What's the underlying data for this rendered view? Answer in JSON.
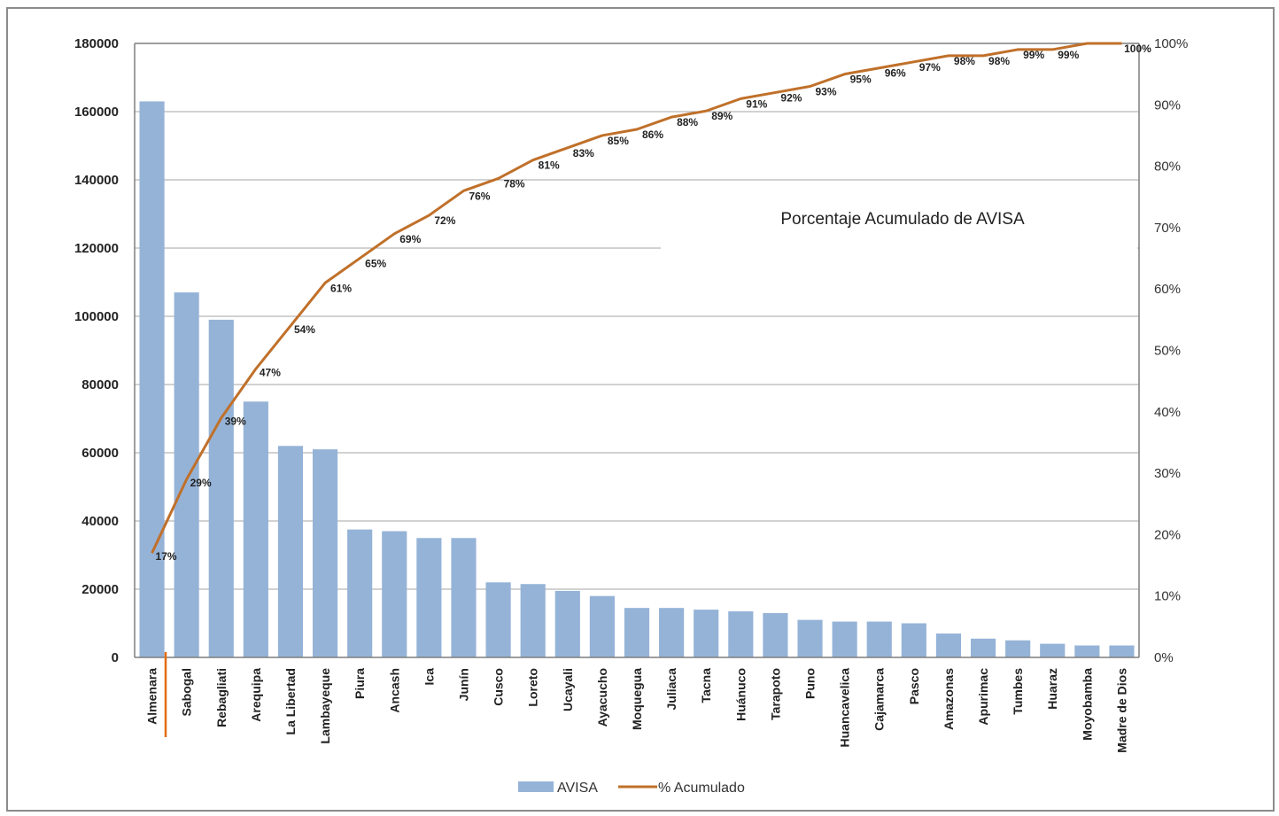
{
  "chart_data": {
    "type": "bar",
    "categories": [
      "Almenara",
      "Sabogal",
      "Rebagliati",
      "Arequipa",
      "La Libertad",
      "Lambayeque",
      "Piura",
      "Ancash",
      "Ica",
      "Junín",
      "Cusco",
      "Loreto",
      "Ucayali",
      "Ayacucho",
      "Moquegua",
      "Juliaca",
      "Tacna",
      "Huánuco",
      "Tarapoto",
      "Puno",
      "Huancavelica",
      "Cajamarca",
      "Pasco",
      "Amazonas",
      "Apurimac",
      "Tumbes",
      "Huaraz",
      "Moyobamba",
      "Madre de Dios"
    ],
    "series": [
      {
        "name": "AVISA",
        "type": "bar",
        "axis": "left",
        "color": "#95b3d7",
        "values": [
          163000,
          107000,
          99000,
          75000,
          62000,
          61000,
          37500,
          37000,
          35000,
          35000,
          22000,
          21500,
          19500,
          18000,
          14500,
          14500,
          14000,
          13500,
          13000,
          11000,
          10500,
          10500,
          10000,
          7000,
          5500,
          5000,
          4000,
          3500,
          3500
        ]
      },
      {
        "name": "% Acumulado",
        "type": "line",
        "axis": "right",
        "color": "#c0702a",
        "values": [
          17,
          29,
          39,
          47,
          54,
          61,
          65,
          69,
          72,
          76,
          78,
          81,
          83,
          85,
          86,
          88,
          89,
          91,
          92,
          93,
          95,
          96,
          97,
          98,
          98,
          99,
          99,
          100,
          100
        ],
        "labels": [
          "17%",
          "29%",
          "39%",
          "47%",
          "54%",
          "61%",
          "65%",
          "69%",
          "72%",
          "76%",
          "78%",
          "81%",
          "83%",
          "85%",
          "86%",
          "88%",
          "89%",
          "91%",
          "92%",
          "93%",
          "95%",
          "96%",
          "97%",
          "98%",
          "98%",
          "99%",
          "99%",
          "",
          "100%"
        ]
      }
    ],
    "yaxis_left": {
      "min": 0,
      "max": 180000,
      "step": 20000,
      "ticks": [
        "0",
        "20000",
        "40000",
        "60000",
        "80000",
        "100000",
        "120000",
        "140000",
        "160000",
        "180000"
      ]
    },
    "yaxis_right": {
      "min": 0,
      "max": 100,
      "step": 10,
      "ticks": [
        "0%",
        "10%",
        "20%",
        "30%",
        "40%",
        "50%",
        "60%",
        "70%",
        "80%",
        "90%",
        "100%"
      ]
    },
    "annotation": "Porcentaje Acumulado de AVISA",
    "legend": {
      "placement": "bottom",
      "items": [
        "AVISA",
        "% Acumulado"
      ]
    },
    "grid": true,
    "gridline_color": "#a6a6a6",
    "axis_color": "#7f7f7f"
  }
}
